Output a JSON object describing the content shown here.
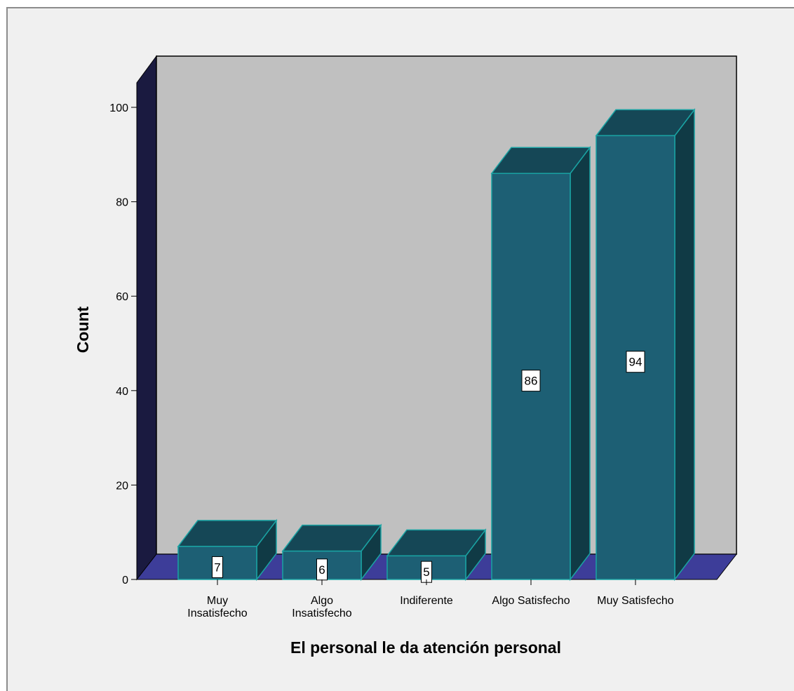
{
  "chart_data": {
    "type": "bar",
    "style": "3d",
    "categories": [
      "Muy Insatisfecho",
      "Algo Insatisfecho",
      "Indiferente",
      "Algo Satisfecho",
      "Muy Satisfecho"
    ],
    "category_labels": [
      [
        "Muy",
        "Insatisfecho"
      ],
      [
        "Algo",
        "Insatisfecho"
      ],
      [
        "Indiferente"
      ],
      [
        "Algo Satisfecho"
      ],
      [
        "Muy Satisfecho"
      ]
    ],
    "values": [
      7,
      6,
      5,
      86,
      94
    ],
    "xlabel": "El personal le da atención personal",
    "ylabel": "Count",
    "ylim": [
      0,
      100
    ],
    "yticks": [
      0,
      20,
      40,
      60,
      80,
      100
    ],
    "grid": false,
    "legend": "none",
    "data_labels": true,
    "colors": {
      "bar_front": "#1d5f74",
      "bar_top": "#154756",
      "bar_side": "#103a45",
      "bar_edge": "#1aa3a3",
      "back_wall": "#c0c0c0",
      "left_wall": "#1a1a40",
      "floor": "#3d3d99",
      "outer_background": "#f0f0f0"
    }
  }
}
